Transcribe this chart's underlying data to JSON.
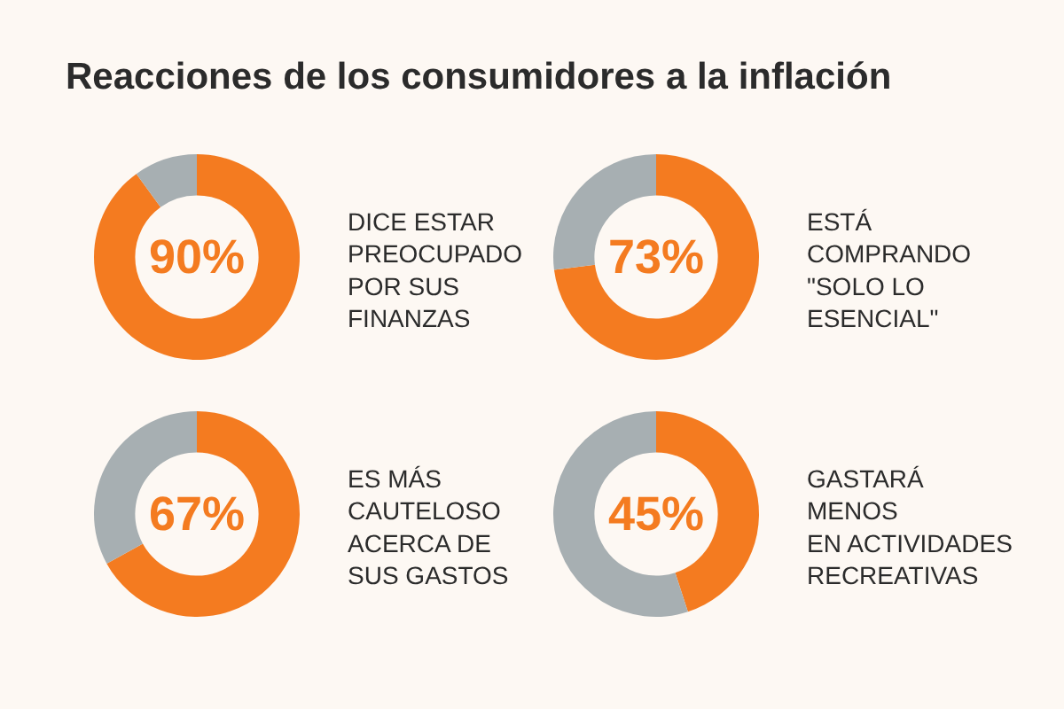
{
  "chart_data": [
    {
      "type": "donut",
      "title": "Reacciones de los consumidores a la inflación",
      "categories": [
        null,
        null
      ],
      "values": [
        90,
        10
      ],
      "colors": [
        "#f47b20",
        "#a7afb2"
      ],
      "value_labels": [
        "90%",
        null
      ],
      "annotations": [
        "DICE ESTAR\nPREOCUPADO\nPOR SUS\nFINANZAS"
      ]
    },
    {
      "type": "donut",
      "categories": [
        null,
        null
      ],
      "values": [
        73,
        27
      ],
      "colors": [
        "#f47b20",
        "#a7afb2"
      ],
      "value_labels": [
        "73%",
        null
      ],
      "annotations": [
        "ESTÁ\nCOMPRANDO\n\"SOLO LO\nESENCIAL\""
      ]
    },
    {
      "type": "donut",
      "categories": [
        null,
        null
      ],
      "values": [
        67,
        33
      ],
      "colors": [
        "#f47b20",
        "#a7afb2"
      ],
      "value_labels": [
        "67%",
        null
      ],
      "annotations": [
        "ES MÁS\nCAUTELOSO\nACERCA DE\nSUS GASTOS"
      ]
    },
    {
      "type": "donut",
      "categories": [
        null,
        null
      ],
      "values": [
        45,
        55
      ],
      "colors": [
        "#f47b20",
        "#a7afb2"
      ],
      "value_labels": [
        "45%",
        null
      ],
      "annotations": [
        "GASTARÁ\nMENOS\nEN ACTIVIDADES\nRECREATIVAS"
      ]
    }
  ]
}
